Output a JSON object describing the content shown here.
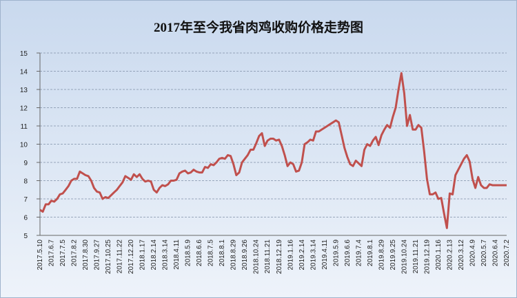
{
  "chart_data": {
    "type": "line",
    "title": "2017年至今我省肉鸡收购价格走势图",
    "categories": [
      "2017.5.10",
      null,
      null,
      null,
      "2017.6.7",
      null,
      null,
      null,
      "2017.7.5",
      null,
      null,
      null,
      "2017.8.2",
      null,
      null,
      null,
      "2017.8.30",
      null,
      null,
      null,
      "2017.9.27",
      null,
      null,
      null,
      "2017.10.25",
      null,
      null,
      null,
      "2017.11.22",
      null,
      null,
      null,
      "2017.12.20",
      null,
      null,
      null,
      "2018.1.17",
      null,
      null,
      null,
      "2018.2.14",
      null,
      null,
      null,
      "2018.3.14",
      null,
      null,
      null,
      "2018.4.11",
      null,
      null,
      null,
      "2018.5.9",
      null,
      null,
      null,
      "2018.6.6",
      null,
      null,
      null,
      "2018.7.5",
      null,
      null,
      null,
      "2018.8.1",
      null,
      null,
      null,
      "2018.8.29",
      null,
      null,
      null,
      "2018.9.26",
      null,
      null,
      null,
      "2018.10.24",
      null,
      null,
      null,
      "2018.11.21",
      null,
      null,
      null,
      "2018.12.19",
      null,
      null,
      null,
      "2019.1.16",
      null,
      null,
      null,
      "2019.2.14",
      null,
      null,
      null,
      "2019.3.14",
      null,
      null,
      null,
      "2019.4.11",
      null,
      null,
      null,
      "2019.5.9",
      null,
      null,
      null,
      "2019.6.6",
      null,
      null,
      null,
      "2019.7.4",
      null,
      null,
      null,
      "2019.8.1",
      null,
      null,
      null,
      "2019.8.29",
      null,
      null,
      null,
      "2019.9.25",
      null,
      null,
      null,
      "2019.10.24",
      null,
      null,
      null,
      "2019.11.21",
      null,
      null,
      null,
      "2019.12.19",
      null,
      null,
      null,
      "2020.1.16",
      null,
      null,
      null,
      "2020.2.13",
      null,
      null,
      null,
      "2020.3.12",
      null,
      null,
      null,
      "2020.4.9",
      null,
      null,
      null,
      "2020.5.7",
      null,
      null,
      null,
      "2020.6.4",
      null,
      null,
      null,
      "2020.7.2"
    ],
    "values": [
      6.4,
      6.3,
      6.7,
      6.7,
      6.9,
      6.85,
      7.0,
      7.25,
      7.3,
      7.5,
      7.7,
      8.0,
      8.1,
      8.1,
      8.5,
      8.4,
      8.3,
      8.25,
      8.0,
      7.6,
      7.4,
      7.35,
      7.0,
      7.1,
      7.05,
      7.2,
      7.35,
      7.5,
      7.7,
      7.9,
      8.25,
      8.15,
      8.05,
      8.35,
      8.2,
      8.35,
      8.1,
      7.95,
      8.0,
      7.95,
      7.5,
      7.35,
      7.6,
      7.75,
      7.7,
      7.8,
      8.0,
      8.0,
      8.05,
      8.4,
      8.5,
      8.55,
      8.4,
      8.45,
      8.6,
      8.5,
      8.45,
      8.45,
      8.75,
      8.7,
      8.9,
      8.85,
      9.0,
      9.2,
      9.25,
      9.2,
      9.4,
      9.35,
      8.9,
      8.3,
      8.45,
      9.0,
      9.2,
      9.4,
      9.7,
      9.7,
      10.05,
      10.45,
      10.6,
      9.9,
      10.2,
      10.3,
      10.3,
      10.2,
      10.25,
      9.9,
      9.4,
      8.8,
      9.0,
      8.9,
      8.5,
      8.55,
      9.0,
      10.0,
      10.1,
      10.25,
      10.2,
      10.7,
      10.7,
      10.8,
      10.9,
      11.0,
      11.1,
      11.2,
      11.3,
      11.2,
      10.5,
      9.8,
      9.3,
      8.9,
      8.8,
      9.1,
      8.95,
      8.8,
      9.7,
      10.0,
      9.9,
      10.2,
      10.4,
      9.95,
      10.5,
      10.8,
      11.05,
      10.9,
      11.5,
      12.0,
      13.0,
      13.9,
      12.8,
      11.0,
      11.6,
      10.8,
      10.8,
      11.05,
      10.9,
      9.6,
      8.1,
      7.25,
      7.25,
      7.35,
      7.0,
      7.05,
      6.2,
      5.4,
      7.3,
      7.25,
      8.3,
      8.6,
      8.9,
      9.2,
      9.4,
      9.05,
      8.1,
      7.6,
      8.2,
      7.75,
      7.6,
      7.6,
      7.8,
      7.75,
      7.75,
      7.75,
      7.75,
      7.75,
      7.75
    ],
    "color": "#c0504d",
    "ylim": [
      5,
      15
    ],
    "yticks": [
      5,
      6,
      7,
      8,
      9,
      10,
      11,
      12,
      13,
      14,
      15
    ],
    "grid": true
  }
}
